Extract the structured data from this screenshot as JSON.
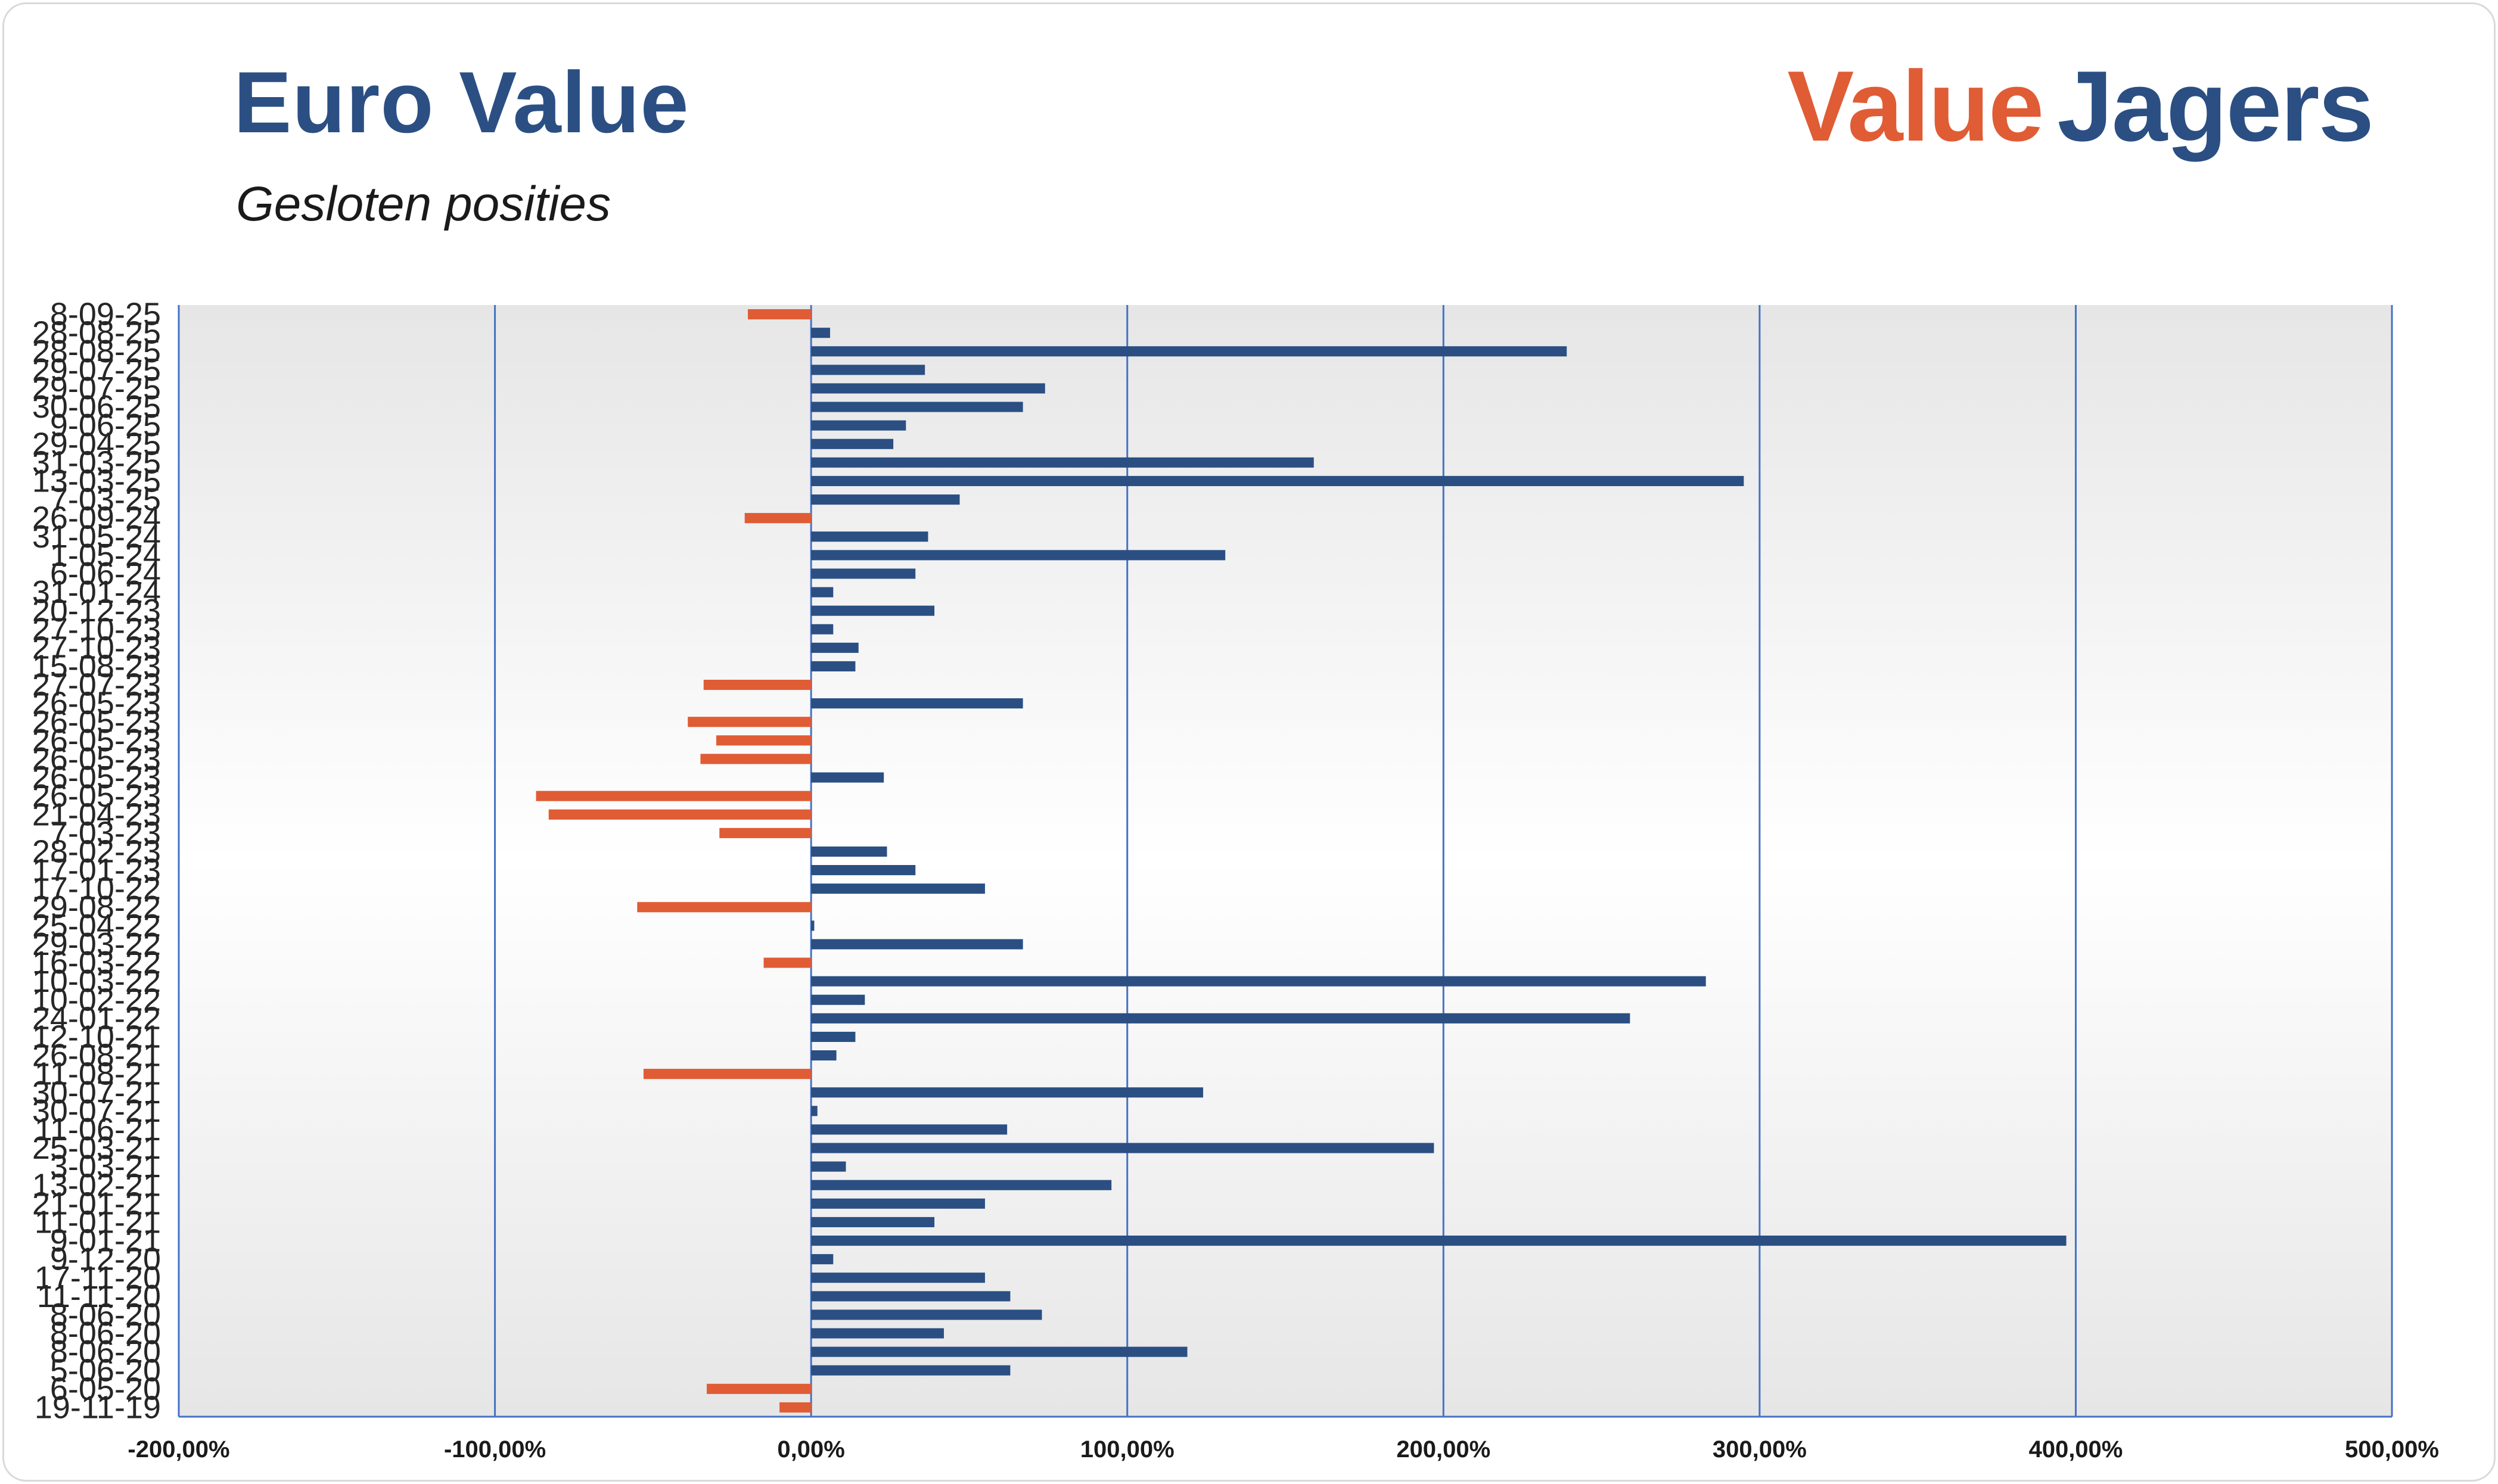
{
  "header": {
    "title": "Euro Value",
    "subtitle": "Gesloten posities"
  },
  "brand": {
    "part1": "Value",
    "part2": "Jagers",
    "color1": "#e05c35",
    "color2": "#2b4f83"
  },
  "chart_data": {
    "type": "bar",
    "orientation": "horizontal",
    "xlim": [
      -200,
      500
    ],
    "x_ticks": [
      -200,
      -100,
      0,
      100,
      200,
      300,
      400,
      500
    ],
    "x_tick_labels": [
      "-200,00%",
      "-100,00%",
      "0,00%",
      "100,00%",
      "200,00%",
      "300,00%",
      "400,00%",
      "500,00%"
    ],
    "grid": true,
    "legend": "none",
    "positive_color": "#2b4f83",
    "negative_color": "#e05c35",
    "categories": [
      "8-09-25",
      "28-08-25",
      "28-08-25",
      "29-07-25",
      "29-07-25",
      "30-06-25",
      "9-06-25",
      "29-04-25",
      "31-03-25",
      "13-03-25",
      "7-03-25",
      "26-09-24",
      "31-05-24",
      "1-05-24",
      "6-06-24",
      "31-01-24",
      "20-12-23",
      "27-10-23",
      "27-10-23",
      "15-08-23",
      "27-07-23",
      "26-05-23",
      "26-05-23",
      "26-05-23",
      "26-05-23",
      "26-05-23",
      "26-05-23",
      "21-04-23",
      "7-03-23",
      "28-02-23",
      "17-01-23",
      "17-10-22",
      "29-08-22",
      "25-04-22",
      "29-03-22",
      "16-03-22",
      "10-03-22",
      "10-02-22",
      "24-01-22",
      "12-10-21",
      "26-08-21",
      "11-08-21",
      "30-07-21",
      "30-07-21",
      "11-06-21",
      "25-03-21",
      "3-03-21",
      "13-02-21",
      "21-01-21",
      "11-01-21",
      "9-01-21",
      "9-12-20",
      "17-11-20",
      "11-11-20",
      "8-06-20",
      "8-06-20",
      "8-06-20",
      "5-06-20",
      "6-05-20",
      "19-11-19"
    ],
    "values": [
      -20,
      6,
      239,
      36,
      74,
      67,
      30,
      26,
      159,
      295,
      47,
      -21,
      37,
      131,
      33,
      7,
      39,
      7,
      15,
      14,
      -34,
      67,
      -39,
      -30,
      -35,
      23,
      -87,
      -83,
      -29,
      24,
      33,
      55,
      -55,
      1,
      67,
      -15,
      283,
      17,
      259,
      14,
      8,
      -53,
      124,
      2,
      62,
      197,
      11,
      95,
      55,
      39,
      397,
      7,
      55,
      63,
      73,
      42,
      119,
      63,
      -33,
      -10
    ]
  }
}
